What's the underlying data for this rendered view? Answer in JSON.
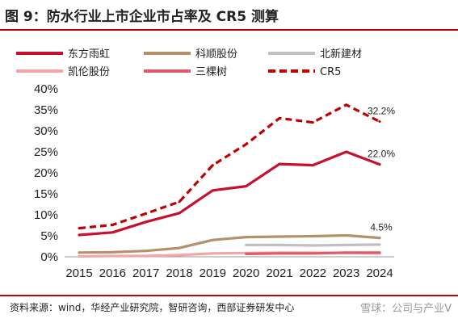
{
  "title": "图 9：防水行业上市企业市占率及 CR5 测算",
  "source": "资料来源：wind，华经产业研究院，智研咨询，西部证券研发中心",
  "watermark": "雪球：公司与产业V",
  "colors": {
    "accent": "#c00000",
    "东方雨虹": "#c8102e",
    "科顺股份": "#b3916a",
    "北新建材": "#c0c0c0",
    "凯伦股份": "#f2a7a7",
    "三棵树": "#e05a6a",
    "CR5": "#c00000"
  },
  "chart_data": {
    "type": "line",
    "title": "",
    "xlabel": "",
    "ylabel": "",
    "ylim": [
      0,
      40
    ],
    "y_ticks": [
      "0%",
      "5%",
      "10%",
      "15%",
      "20%",
      "25%",
      "30%",
      "35%",
      "40%"
    ],
    "x": [
      "2015",
      "2016",
      "2017",
      "2018",
      "2019",
      "2020",
      "2021",
      "2022",
      "2023",
      "2024"
    ],
    "legend": {
      "placement": "top",
      "columns": 3
    },
    "series": [
      {
        "name": "东方雨虹",
        "style": "solid",
        "values": [
          5.2,
          5.8,
          8.3,
          10.4,
          15.8,
          16.8,
          22.1,
          21.8,
          25.0,
          22.0
        ],
        "end_label": "22.0%"
      },
      {
        "name": "科顺股份",
        "style": "solid",
        "values": [
          1.0,
          1.1,
          1.4,
          2.1,
          4.0,
          4.7,
          4.8,
          4.9,
          5.1,
          4.5
        ],
        "end_label": "4.5%"
      },
      {
        "name": "北新建材",
        "style": "solid",
        "values": [
          null,
          null,
          null,
          null,
          null,
          2.8,
          2.8,
          2.7,
          2.8,
          2.9
        ]
      },
      {
        "name": "凯伦股份",
        "style": "solid",
        "values": [
          0.1,
          0.2,
          0.2,
          0.4,
          0.8,
          0.9,
          1.0,
          1.0,
          0.9,
          0.8
        ]
      },
      {
        "name": "三棵树",
        "style": "solid",
        "values": [
          null,
          null,
          null,
          null,
          null,
          0.7,
          0.8,
          0.8,
          1.0,
          1.0
        ]
      },
      {
        "name": "CR5",
        "style": "dashed",
        "values": [
          6.8,
          7.6,
          10.3,
          13.1,
          21.8,
          26.8,
          33.0,
          32.0,
          36.2,
          32.2
        ],
        "end_label": "32.2%"
      }
    ]
  }
}
